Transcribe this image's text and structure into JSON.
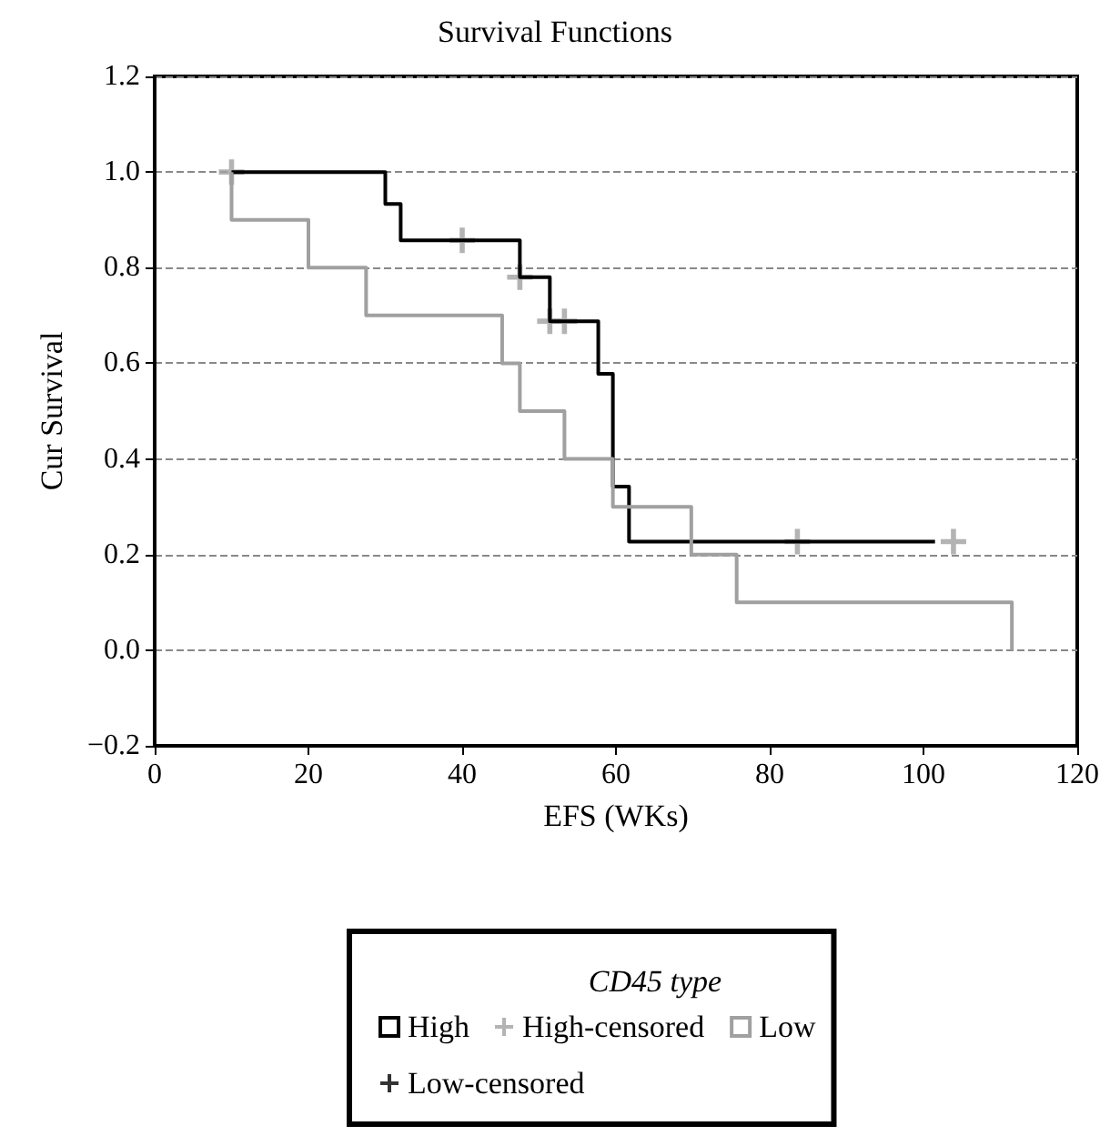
{
  "chart_data": {
    "type": "step",
    "title": "Survival Functions",
    "xlabel": "EFS (WKs)",
    "ylabel": "Cur Survival",
    "legend_title": "CD45 type",
    "xlim": [
      0,
      120
    ],
    "xticks": [
      0,
      20,
      40,
      60,
      80,
      100,
      120
    ],
    "ylim": [
      -0.2,
      1.2
    ],
    "yticks": [
      {
        "value": -0.2,
        "label": "−0.2"
      },
      {
        "value": 0,
        "label": "0.0"
      },
      {
        "value": 0.2,
        "label": "0.2"
      },
      {
        "value": 0.4,
        "label": "0.4"
      },
      {
        "value": 0.6,
        "label": "0.6"
      },
      {
        "value": 0.8,
        "label": "0.8"
      },
      {
        "value": 1,
        "label": "1.0"
      },
      {
        "value": 1.2,
        "label": "1.2"
      }
    ],
    "grid": "y",
    "legend": "bottom",
    "series": [
      {
        "name": "High",
        "color": "#000000",
        "x": [
          10,
          30,
          32,
          47.5,
          51.4,
          57.7,
          59.6,
          61.7,
          101.5
        ],
        "values": [
          1.0,
          0.933,
          0.857,
          0.78,
          0.688,
          0.578,
          0.342,
          0.227,
          0.227
        ]
      },
      {
        "name": "High-censored",
        "type": "scatter",
        "marker": "cross",
        "color": "#a0a0a0",
        "x": [
          10,
          40,
          47.5,
          51.4,
          53.3,
          83.6,
          103.9
        ],
        "values": [
          1.0,
          0.857,
          0.78,
          0.688,
          0.688,
          0.227,
          0.227
        ]
      },
      {
        "name": "Low",
        "color": "#a0a0a0",
        "x": [
          10,
          10,
          20,
          27.5,
          45.2,
          47.5,
          53.3,
          59.6,
          69.8,
          75.7,
          111.5,
          111.5
        ],
        "values": [
          1.0,
          0.9,
          0.8,
          0.7,
          0.6,
          0.5,
          0.4,
          0.3,
          0.2,
          0.1,
          0.1,
          0.0
        ]
      },
      {
        "name": "Low-censored",
        "type": "scatter",
        "marker": "cross",
        "color": "#000000"
      }
    ]
  }
}
